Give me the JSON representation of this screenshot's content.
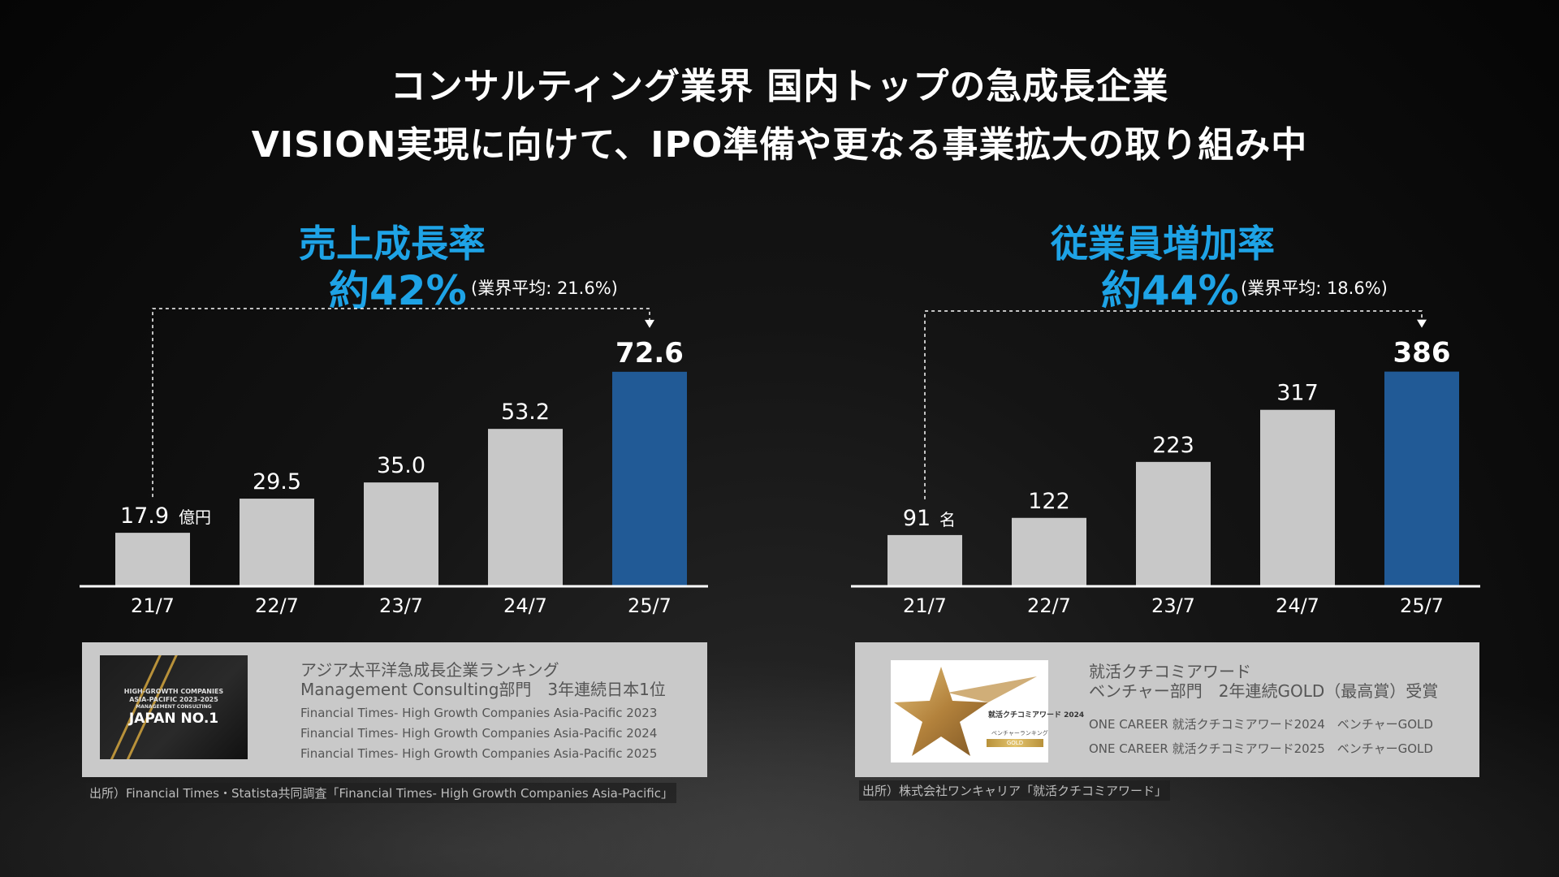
{
  "headline": {
    "line1": "コンサルティング業界 国内トップの急成長企業",
    "line2": "VISION実現に向けて、IPO準備や更なる事業拡大の取り組み中"
  },
  "left_panel": {
    "kpi_label": "売上成長率",
    "kpi_value": "約42%",
    "kpi_note": "(業界平均: 21.6%)",
    "unit": "億円",
    "award_title": "アジア太平洋急成長企業ランキング",
    "award_subtitle": "Management Consulting部門　3年連続日本1位",
    "award_items": [
      "Financial Times- High Growth Companies Asia-Pacific 2023",
      "Financial Times- High Growth Companies Asia-Pacific 2024",
      "Financial Times- High Growth Companies Asia-Pacific 2025"
    ],
    "badge_small1": "HIGH-GROWTH COMPANIES",
    "badge_small2": "ASIA-PACIFIC 2023-2025",
    "badge_small3": "MANAGEMENT CONSULTING",
    "badge_big": "JAPAN NO.1",
    "source": "出所）Financial Times・Statista共同調査「Financial Times- High Growth Companies Asia-Pacific」"
  },
  "right_panel": {
    "kpi_label": "従業員増加率",
    "kpi_value": "約44%",
    "kpi_note": "(業界平均: 18.6%)",
    "unit": "名",
    "award_title": "就活クチコミアワード",
    "award_subtitle": "ベンチャー部門　2年連続GOLD（最高賞）受賞",
    "award_items": [
      "ONE CAREER 就活クチコミアワード2024　ベンチャーGOLD",
      "ONE CAREER 就活クチコミアワード2025　ベンチャーGOLD"
    ],
    "badge_label1": "就活クチコミアワード 2024",
    "badge_label2": "ベンチャーランキング",
    "badge_gold": "GOLD",
    "source": "出所）株式会社ワンキャリア「就活クチコミアワード」"
  },
  "colors": {
    "accent": "#1ea3e6",
    "bar_default": "#c8c8c8",
    "bar_highlight": "#215a96",
    "award_bg": "#c9c9c9"
  },
  "chart_data": [
    {
      "type": "bar",
      "title": "売上成長率",
      "categories": [
        "21/7",
        "22/7",
        "23/7",
        "24/7",
        "25/7"
      ],
      "values": [
        17.9,
        29.5,
        35.0,
        53.2,
        72.6
      ],
      "value_labels": [
        "17.9",
        "29.5",
        "35.0",
        "53.2",
        "72.6"
      ],
      "highlight_index": 4,
      "ylim": [
        0,
        80
      ],
      "grid": false
    },
    {
      "type": "bar",
      "title": "従業員増加率",
      "categories": [
        "21/7",
        "22/7",
        "23/7",
        "24/7",
        "25/7"
      ],
      "values": [
        91,
        122,
        223,
        317,
        386
      ],
      "value_labels": [
        "91",
        "122",
        "223",
        "317",
        "386"
      ],
      "highlight_index": 4,
      "ylim": [
        0,
        425
      ],
      "grid": false
    }
  ]
}
